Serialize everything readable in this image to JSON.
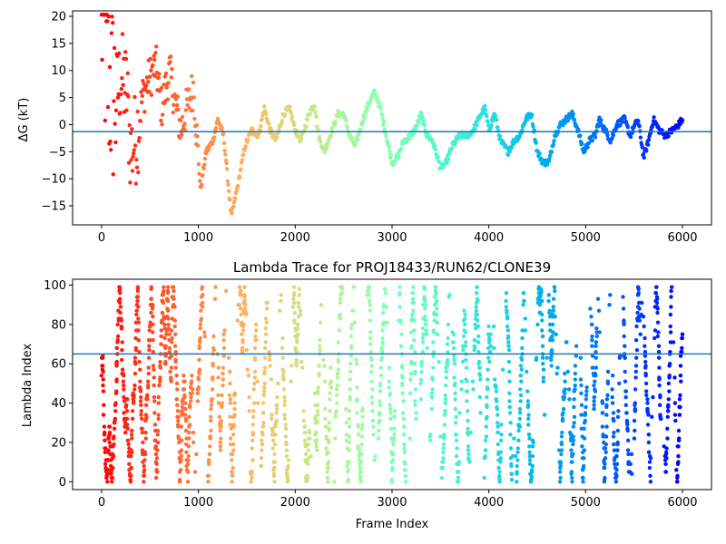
{
  "chart_data": [
    {
      "type": "scatter",
      "title": "",
      "xlabel": "",
      "ylabel": "ΔG (kT)",
      "xlim": [
        -300,
        6300
      ],
      "ylim": [
        -18.5,
        21
      ],
      "xticks": [
        0,
        1000,
        2000,
        3000,
        4000,
        5000,
        6000
      ],
      "yticks": [
        -15,
        -10,
        -5,
        0,
        5,
        10,
        15,
        20
      ],
      "colormap": "rainbow (red at frame 0 → violet at frame 6000)",
      "hline": {
        "y": -1.3,
        "color": "#1f77b4"
      },
      "x_range": [
        0,
        6000
      ],
      "trajectory": [
        [
          0,
          20
        ],
        [
          20,
          18
        ],
        [
          40,
          12
        ],
        [
          60,
          10
        ],
        [
          80,
          8
        ],
        [
          100,
          6
        ],
        [
          150,
          5
        ],
        [
          200,
          9
        ],
        [
          260,
          6
        ],
        [
          300,
          -5
        ],
        [
          360,
          -2
        ],
        [
          420,
          5
        ],
        [
          480,
          8
        ],
        [
          560,
          11
        ],
        [
          620,
          3
        ],
        [
          700,
          10
        ],
        [
          760,
          4
        ],
        [
          820,
          -1
        ],
        [
          880,
          3
        ],
        [
          950,
          7
        ],
        [
          1020,
          -12
        ],
        [
          1080,
          -5
        ],
        [
          1150,
          -3
        ],
        [
          1200,
          1
        ],
        [
          1260,
          -2
        ],
        [
          1340,
          -17
        ],
        [
          1420,
          -10
        ],
        [
          1480,
          -4
        ],
        [
          1550,
          -1
        ],
        [
          1620,
          -2
        ],
        [
          1680,
          3
        ],
        [
          1740,
          -1
        ],
        [
          1800,
          -3
        ],
        [
          1880,
          2
        ],
        [
          1940,
          3
        ],
        [
          2000,
          -1
        ],
        [
          2060,
          -3
        ],
        [
          2140,
          2
        ],
        [
          2200,
          4
        ],
        [
          2240,
          -2
        ],
        [
          2300,
          -5
        ],
        [
          2360,
          -2
        ],
        [
          2440,
          2
        ],
        [
          2500,
          2
        ],
        [
          2560,
          -2
        ],
        [
          2620,
          -4
        ],
        [
          2700,
          1
        ],
        [
          2760,
          4
        ],
        [
          2820,
          6
        ],
        [
          2880,
          3
        ],
        [
          2940,
          -2
        ],
        [
          3000,
          -7
        ],
        [
          3060,
          -6
        ],
        [
          3120,
          -3
        ],
        [
          3200,
          -2
        ],
        [
          3260,
          0
        ],
        [
          3300,
          2
        ],
        [
          3360,
          -2
        ],
        [
          3420,
          -3
        ],
        [
          3500,
          -8
        ],
        [
          3560,
          -7
        ],
        [
          3620,
          -4
        ],
        [
          3700,
          -2
        ],
        [
          3780,
          -2
        ],
        [
          3840,
          -1
        ],
        [
          3920,
          2
        ],
        [
          3960,
          3
        ],
        [
          4000,
          -1
        ],
        [
          4060,
          2
        ],
        [
          4120,
          -3
        ],
        [
          4200,
          -5
        ],
        [
          4260,
          -3
        ],
        [
          4320,
          -2
        ],
        [
          4380,
          1
        ],
        [
          4440,
          2
        ],
        [
          4500,
          -5
        ],
        [
          4560,
          -7
        ],
        [
          4620,
          -7
        ],
        [
          4680,
          -2
        ],
        [
          4740,
          0
        ],
        [
          4800,
          1
        ],
        [
          4860,
          2
        ],
        [
          4920,
          -1
        ],
        [
          4980,
          -5
        ],
        [
          5040,
          -3
        ],
        [
          5100,
          -2
        ],
        [
          5140,
          1
        ],
        [
          5200,
          -1
        ],
        [
          5260,
          -3
        ],
        [
          5320,
          0
        ],
        [
          5400,
          1
        ],
        [
          5460,
          -2
        ],
        [
          5540,
          1
        ],
        [
          5600,
          -6
        ],
        [
          5650,
          -3
        ],
        [
          5700,
          1
        ],
        [
          5760,
          -1
        ],
        [
          5820,
          -2
        ],
        [
          5900,
          -1
        ],
        [
          5960,
          0
        ],
        [
          6000,
          1
        ]
      ]
    },
    {
      "type": "scatter",
      "title": "Lambda Trace for PROJ18433/RUN62/CLONE39",
      "xlabel": "Frame Index",
      "ylabel": "Lambda Index",
      "xlim": [
        -300,
        6300
      ],
      "ylim": [
        -4,
        103
      ],
      "xticks": [
        0,
        1000,
        2000,
        3000,
        4000,
        5000,
        6000
      ],
      "yticks": [
        0,
        20,
        40,
        60,
        80,
        100
      ],
      "colormap": "rainbow (red at frame 0 → violet at frame 6000)",
      "hline": {
        "y": 65,
        "color": "#1f77b4"
      },
      "x_range": [
        0,
        6000
      ],
      "lambda_range": [
        0,
        99
      ]
    }
  ]
}
